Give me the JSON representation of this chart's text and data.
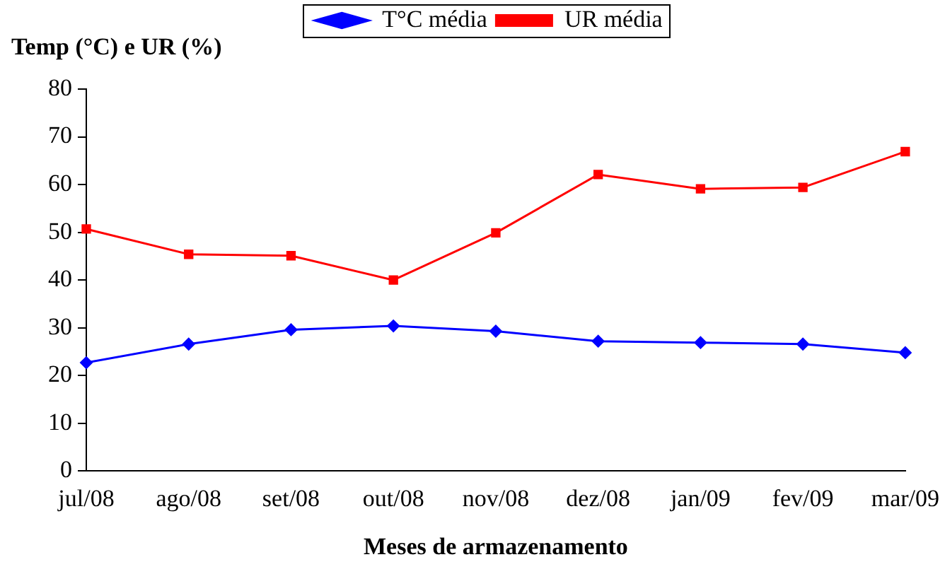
{
  "chart_data": {
    "type": "line",
    "ylabel": "Temp (°C) e UR (%)",
    "xlabel": "Meses de armazenamento",
    "categories": [
      "jul/08",
      "ago/08",
      "set/08",
      "out/08",
      "nov/08",
      "dez/08",
      "jan/09",
      "fev/09",
      "mar/09"
    ],
    "series": [
      {
        "name": "T°C média",
        "color": "#0000ff",
        "marker": "diamond",
        "values": [
          22.7,
          26.6,
          29.6,
          30.4,
          29.3,
          27.2,
          26.9,
          26.6,
          24.8
        ]
      },
      {
        "name": "UR média",
        "color": "#ff0000",
        "marker": "square",
        "values": [
          50.7,
          45.4,
          45.1,
          40.0,
          49.9,
          62.1,
          59.1,
          59.4,
          66.9
        ]
      }
    ],
    "ylim": [
      0,
      80
    ],
    "yticks": [
      0,
      10,
      20,
      30,
      40,
      50,
      60,
      70,
      80
    ],
    "grid": false,
    "legend": "top",
    "line_style": "solid"
  }
}
